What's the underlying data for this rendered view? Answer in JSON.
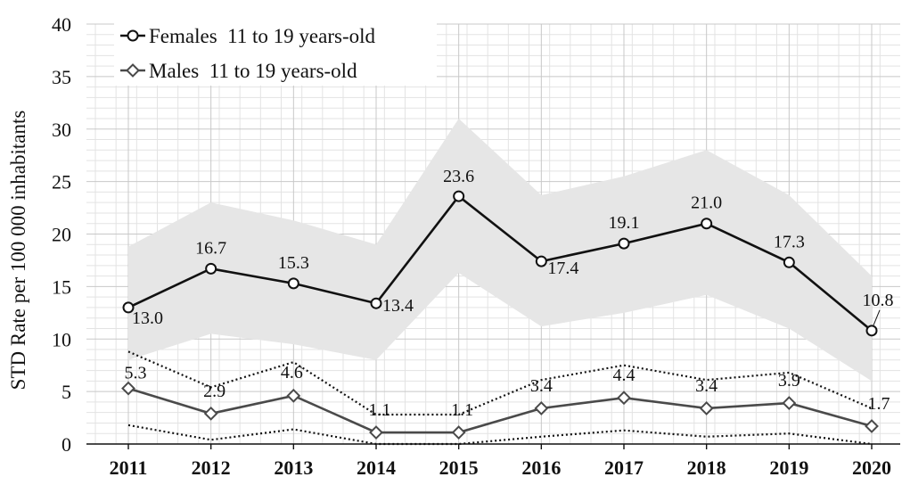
{
  "chart_data": {
    "type": "line",
    "ylabel": "STD Rate per 100 000 inhabitants",
    "xlabel": "",
    "ylim": [
      0,
      40
    ],
    "yticks": [
      0,
      5,
      10,
      15,
      20,
      25,
      30,
      35,
      40
    ],
    "categories": [
      "2011",
      "2012",
      "2013",
      "2014",
      "2015",
      "2016",
      "2017",
      "2018",
      "2019",
      "2020"
    ],
    "grid": true,
    "legend_position": "top-left",
    "series": [
      {
        "name": "Females  11 to 19 years-old",
        "marker": "circle",
        "color": "#111111",
        "values": [
          13.0,
          16.7,
          15.3,
          13.4,
          23.6,
          17.4,
          19.1,
          21.0,
          17.3,
          10.8
        ],
        "labels": [
          "13.0",
          "16.7",
          "15.3",
          "13.4",
          "23.6",
          "17.4",
          "19.1",
          "21.0",
          "17.3",
          "10.8"
        ],
        "ci_lower": [
          8.0,
          10.5,
          9.5,
          8.0,
          16.3,
          11.2,
          12.5,
          14.2,
          11.0,
          6.0
        ],
        "ci_upper": [
          18.8,
          23.0,
          21.3,
          19.0,
          31.0,
          23.7,
          25.5,
          28.0,
          23.7,
          16.0
        ],
        "ci_color": "#e6e6e6"
      },
      {
        "name": "Males  11 to 19 years-old",
        "marker": "diamond",
        "color": "#4a4a4a",
        "values": [
          5.3,
          2.9,
          4.6,
          1.1,
          1.1,
          3.4,
          4.4,
          3.4,
          3.9,
          1.7
        ],
        "labels": [
          "5.3",
          "2.9",
          "4.6",
          "1.1",
          "1.1",
          "3.4",
          "4.4",
          "3.4",
          "3.9",
          "1.7"
        ],
        "ci_lower": [
          1.8,
          0.4,
          1.4,
          0.0,
          0.0,
          0.7,
          1.3,
          0.7,
          1.0,
          0.0
        ],
        "ci_upper": [
          8.8,
          5.4,
          7.8,
          2.8,
          2.8,
          6.1,
          7.5,
          6.1,
          6.8,
          3.4
        ]
      }
    ]
  }
}
